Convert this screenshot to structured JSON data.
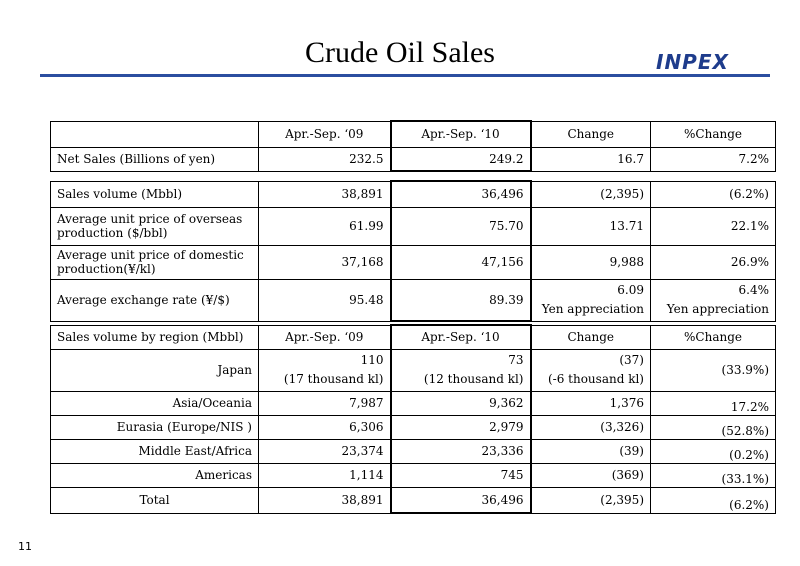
{
  "header": {
    "title": "Crude Oil Sales",
    "logo": "INPEX"
  },
  "page_number": "11",
  "table1": {
    "headers": [
      "",
      "Apr.-Sep. ‘09",
      "Apr.-Sep. ‘10",
      "Change",
      "%Change"
    ],
    "rows": [
      {
        "label": "Net Sales (Billions of yen)",
        "v09": "232.5",
        "v10": "249.2",
        "change": "16.7",
        "pct": "7.2%"
      }
    ]
  },
  "table2": {
    "rows": [
      {
        "label": "Sales volume (Mbbl)",
        "v09": "38,891",
        "v10": "36,496",
        "change": "(2,395)",
        "pct": "(6.2%)"
      },
      {
        "label": "Average unit price of overseas production ($/bbl)",
        "v09": "61.99",
        "v10": "75.70",
        "change": "13.71",
        "pct": "22.1%"
      },
      {
        "label": "Average unit price of domestic production(¥/kl)",
        "v09": "37,168",
        "v10": "47,156",
        "change": "9,988",
        "pct": "26.9%"
      },
      {
        "label": "Average exchange rate (¥/$)",
        "v09": "95.48",
        "v10": "89.39",
        "change": "6.09",
        "change_note": "Yen appreciation",
        "pct": "6.4%",
        "pct_note": "Yen appreciation"
      }
    ]
  },
  "table3": {
    "headers": [
      "Sales volume by region (Mbbl)",
      "Apr.-Sep. ‘09",
      "Apr.-Sep. ‘10",
      "Change",
      "%Change"
    ],
    "rows": [
      {
        "label": "Japan",
        "v09": "110",
        "v09_note": "(17 thousand kl)",
        "v10": "73",
        "v10_note": "(12 thousand kl)",
        "change": "(37)",
        "change_note": "(-6 thousand kl)",
        "pct": "(33.9%)"
      },
      {
        "label": "Asia/Oceania",
        "v09": "7,987",
        "v10": "9,362",
        "change": "1,376",
        "pct": "17.2%"
      },
      {
        "label": "Eurasia (Europe/NIS )",
        "v09": "6,306",
        "v10": "2,979",
        "change": "(3,326)",
        "pct": "(52.8%)"
      },
      {
        "label": "Middle East/Africa",
        "v09": "23,374",
        "v10": "23,336",
        "change": "(39)",
        "pct": "(0.2%)"
      },
      {
        "label": "Americas",
        "v09": "1,114",
        "v10": "745",
        "change": "(369)",
        "pct": "(33.1%)"
      },
      {
        "label": "Total",
        "v09": "38,891",
        "v10": "36,496",
        "change": "(2,395)",
        "pct": "(6.2%)"
      }
    ]
  }
}
